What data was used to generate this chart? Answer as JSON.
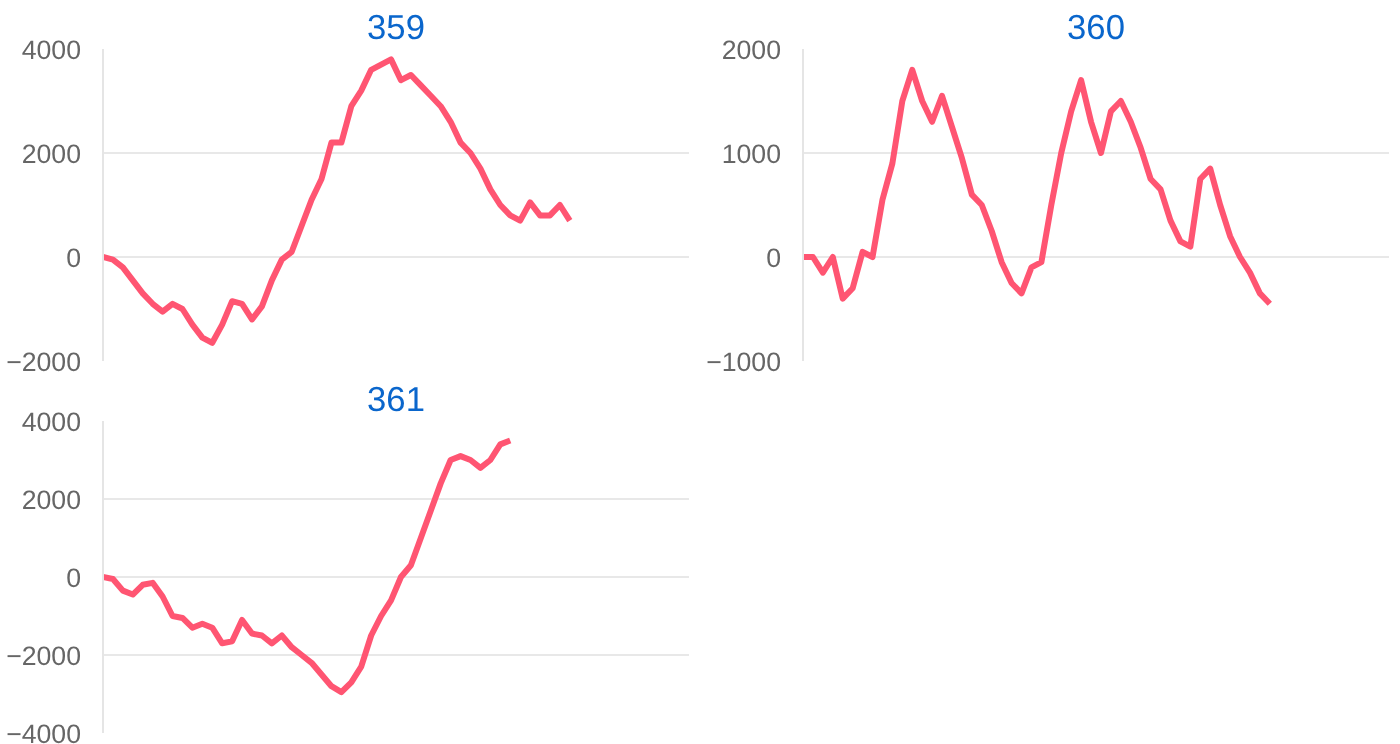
{
  "chart_data": [
    {
      "type": "line",
      "title": "359",
      "categories": [
        null,
        null,
        null,
        null,
        null,
        null,
        null,
        null,
        null,
        null,
        null,
        null,
        null,
        null,
        null,
        null,
        null,
        null,
        null,
        null,
        null,
        null,
        null,
        null,
        null,
        null,
        null,
        null,
        null,
        null,
        null,
        null,
        null,
        null,
        null,
        null,
        null,
        null,
        null,
        null,
        null,
        null,
        null,
        null,
        null,
        null,
        null,
        null,
        null,
        null,
        null,
        null,
        null,
        null,
        null,
        null,
        null,
        null,
        null,
        null
      ],
      "series": [
        {
          "color": "#ff5572",
          "values": [
            0,
            -50,
            -200,
            -450,
            -700,
            -900,
            -1050,
            -900,
            -1000,
            -1300,
            -1550,
            -1650,
            -1300,
            -850,
            -900,
            -1200,
            -950,
            -450,
            -50,
            100,
            600,
            1100,
            1500,
            2200,
            2200,
            2900,
            3200,
            3600,
            3700,
            3800,
            3400,
            3500,
            3300,
            3100,
            2900,
            2600,
            2200,
            2000,
            1700,
            1300,
            1000,
            800,
            700,
            1050,
            800,
            800,
            1000,
            700,
            null,
            null,
            null,
            null,
            null,
            null,
            null,
            null,
            null,
            null,
            null,
            null
          ]
        }
      ],
      "ylim": [
        -2000,
        4000
      ],
      "yticks": [
        -2000,
        0,
        2000,
        4000
      ],
      "grid": "y",
      "tick_labels": "y",
      "marker": "none",
      "line_style": "solid"
    },
    {
      "type": "line",
      "title": "360",
      "categories": [
        null,
        null,
        null,
        null,
        null,
        null,
        null,
        null,
        null,
        null,
        null,
        null,
        null,
        null,
        null,
        null,
        null,
        null,
        null,
        null,
        null,
        null,
        null,
        null,
        null,
        null,
        null,
        null,
        null,
        null,
        null,
        null,
        null,
        null,
        null,
        null,
        null,
        null,
        null,
        null,
        null,
        null,
        null,
        null,
        null,
        null,
        null,
        null,
        null,
        null,
        null,
        null,
        null,
        null,
        null,
        null,
        null,
        null,
        null,
        null
      ],
      "series": [
        {
          "color": "#ff5572",
          "values": [
            0,
            0,
            -150,
            0,
            -400,
            -300,
            50,
            0,
            550,
            900,
            1500,
            1800,
            1500,
            1300,
            1550,
            1250,
            950,
            600,
            500,
            250,
            -50,
            -250,
            -350,
            -100,
            -50,
            500,
            1000,
            1400,
            1700,
            1300,
            1000,
            1400,
            1500,
            1300,
            1050,
            750,
            650,
            350,
            150,
            100,
            750,
            850,
            500,
            200,
            0,
            -150,
            -350,
            -450,
            null,
            null,
            null,
            null,
            null,
            null,
            null,
            null,
            null,
            null,
            null,
            null
          ]
        }
      ],
      "ylim": [
        -1000,
        2000
      ],
      "yticks": [
        -1000,
        0,
        1000,
        2000
      ],
      "grid": "y",
      "tick_labels": "y",
      "marker": "none",
      "line_style": "solid"
    },
    {
      "type": "line",
      "title": "361",
      "categories": [
        null,
        null,
        null,
        null,
        null,
        null,
        null,
        null,
        null,
        null,
        null,
        null,
        null,
        null,
        null,
        null,
        null,
        null,
        null,
        null,
        null,
        null,
        null,
        null,
        null,
        null,
        null,
        null,
        null,
        null,
        null,
        null,
        null,
        null,
        null,
        null,
        null,
        null,
        null,
        null,
        null,
        null,
        null,
        null,
        null,
        null,
        null,
        null,
        null,
        null,
        null,
        null,
        null,
        null,
        null,
        null,
        null,
        null,
        null,
        null
      ],
      "series": [
        {
          "color": "#ff5572",
          "values": [
            0,
            -50,
            -350,
            -450,
            -200,
            -150,
            -500,
            -1000,
            -1050,
            -1300,
            -1200,
            -1300,
            -1700,
            -1650,
            -1100,
            -1450,
            -1500,
            -1700,
            -1500,
            -1800,
            -2000,
            -2200,
            -2500,
            -2800,
            -2950,
            -2700,
            -2300,
            -1500,
            -1000,
            -600,
            0,
            300,
            1000,
            1700,
            2400,
            3000,
            3100,
            3000,
            2800,
            3000,
            3400,
            3500,
            null,
            null,
            null,
            null,
            null,
            null,
            null,
            null,
            null,
            null,
            null,
            null,
            null,
            null,
            null,
            null,
            null,
            null
          ]
        }
      ],
      "ylim": [
        -4000,
        4000
      ],
      "yticks": [
        -4000,
        -2000,
        0,
        2000,
        4000
      ],
      "grid": "y",
      "tick_labels": "y",
      "marker": "none",
      "line_style": "solid"
    }
  ]
}
